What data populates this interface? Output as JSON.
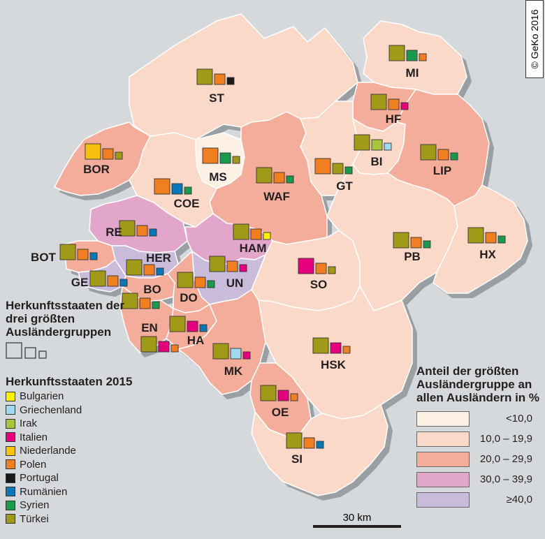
{
  "copyright": "© GeKo 2016",
  "scale_label": "30 km",
  "legend_size_title": "Herkunftsstaaten der drei größten Ausländergruppen",
  "legend_countries_title": "Herkunftsstaaten 2015",
  "countries": [
    {
      "name": "Bulgarien",
      "color": "#fff200"
    },
    {
      "name": "Griechenland",
      "color": "#9fd9f0"
    },
    {
      "name": "Irak",
      "color": "#a8c63c"
    },
    {
      "name": "Italien",
      "color": "#e5007e"
    },
    {
      "name": "Niederlande",
      "color": "#f7c20f"
    },
    {
      "name": "Polen",
      "color": "#f07f22"
    },
    {
      "name": "Portugal",
      "color": "#1a1a1a"
    },
    {
      "name": "Rumänien",
      "color": "#0a78b8"
    },
    {
      "name": "Syrien",
      "color": "#1a9a4e"
    },
    {
      "name": "Türkei",
      "color": "#a19a19"
    }
  ],
  "legend_share_title": "Anteil der größten Ausländergruppe an allen Ausländern in %",
  "share_classes": [
    {
      "label": "<10,0",
      "color": "#fdf1e6"
    },
    {
      "label": "10,0 – 19,9",
      "color": "#fad9c8"
    },
    {
      "label": "20,0 – 29,9",
      "color": "#f3ad9a"
    },
    {
      "label": "30,0 – 39,9",
      "color": "#e2a6cb"
    },
    {
      "label": "≥40,0",
      "color": "#c9bcdb"
    }
  ],
  "districts": [
    {
      "code": "ST",
      "share_class": 1,
      "groups": [
        "Türkei",
        "Polen",
        "Portugal"
      ]
    },
    {
      "code": "MI",
      "share_class": 1,
      "groups": [
        "Türkei",
        "Syrien",
        "Polen"
      ]
    },
    {
      "code": "HF",
      "share_class": 2,
      "groups": [
        "Türkei",
        "Polen",
        "Italien"
      ]
    },
    {
      "code": "BOR",
      "share_class": 2,
      "groups": [
        "Niederlande",
        "Polen",
        "Türkei"
      ]
    },
    {
      "code": "MS",
      "share_class": 0,
      "groups": [
        "Polen",
        "Syrien",
        "Türkei"
      ]
    },
    {
      "code": "WAF",
      "share_class": 2,
      "groups": [
        "Türkei",
        "Polen",
        "Syrien"
      ]
    },
    {
      "code": "GT",
      "share_class": 1,
      "groups": [
        "Polen",
        "Türkei",
        "Syrien"
      ]
    },
    {
      "code": "BI",
      "share_class": 1,
      "groups": [
        "Türkei",
        "Irak",
        "Griechenland"
      ]
    },
    {
      "code": "LIP",
      "share_class": 2,
      "groups": [
        "Türkei",
        "Polen",
        "Syrien"
      ]
    },
    {
      "code": "COE",
      "share_class": 1,
      "groups": [
        "Polen",
        "Rumänien",
        "Syrien"
      ]
    },
    {
      "code": "RE",
      "share_class": 3,
      "groups": [
        "Türkei",
        "Polen",
        "Rumänien"
      ]
    },
    {
      "code": "HAM",
      "share_class": 3,
      "groups": [
        "Türkei",
        "Polen",
        "Bulgarien"
      ]
    },
    {
      "code": "BOT",
      "share_class": 2,
      "groups": [
        "Türkei",
        "Polen",
        "Rumänien"
      ]
    },
    {
      "code": "HER",
      "share_class": 4,
      "groups": [
        "Türkei",
        "Polen",
        "Rumänien"
      ]
    },
    {
      "code": "GE",
      "share_class": 4,
      "groups": [
        "Türkei",
        "Polen",
        "Rumänien"
      ]
    },
    {
      "code": "UN",
      "share_class": 4,
      "groups": [
        "Türkei",
        "Polen",
        "Italien"
      ]
    },
    {
      "code": "SO",
      "share_class": 1,
      "groups": [
        "Italien",
        "Polen",
        "Türkei"
      ]
    },
    {
      "code": "PB",
      "share_class": 1,
      "groups": [
        "Türkei",
        "Polen",
        "Syrien"
      ]
    },
    {
      "code": "HX",
      "share_class": 1,
      "groups": [
        "Türkei",
        "Polen",
        "Syrien"
      ]
    },
    {
      "code": "BO",
      "share_class": 2,
      "groups": [
        "Türkei",
        "Polen",
        "Syrien"
      ]
    },
    {
      "code": "DO",
      "share_class": 2,
      "groups": [
        "Türkei",
        "Polen",
        "Syrien"
      ]
    },
    {
      "code": "EN",
      "share_class": 2,
      "groups": [
        "Türkei",
        "Italien",
        "Polen"
      ]
    },
    {
      "code": "HA",
      "share_class": 2,
      "groups": [
        "Türkei",
        "Italien",
        "Rumänien"
      ]
    },
    {
      "code": "MK",
      "share_class": 2,
      "groups": [
        "Türkei",
        "Griechenland",
        "Italien"
      ]
    },
    {
      "code": "HSK",
      "share_class": 1,
      "groups": [
        "Türkei",
        "Italien",
        "Polen"
      ]
    },
    {
      "code": "OE",
      "share_class": 2,
      "groups": [
        "Türkei",
        "Italien",
        "Polen"
      ]
    },
    {
      "code": "SI",
      "share_class": 1,
      "groups": [
        "Türkei",
        "Polen",
        "Rumänien"
      ]
    }
  ]
}
